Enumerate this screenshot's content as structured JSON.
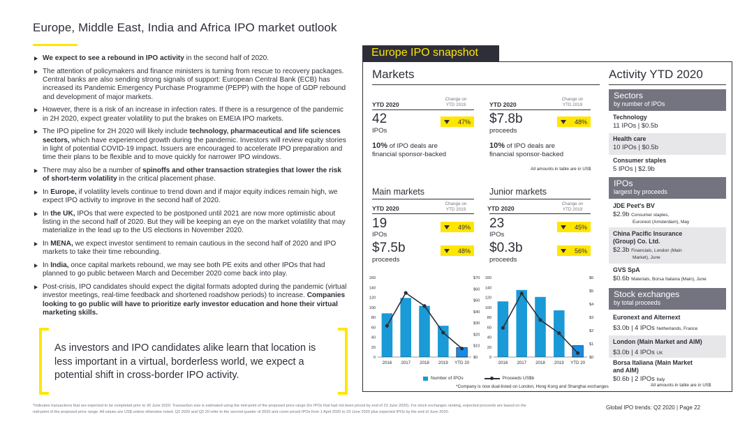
{
  "page": {
    "title": "Europe, Middle East, India and Africa IPO market outlook",
    "footer": "Global IPO trends: Q2 2020  |  Page 22",
    "footnote_line1": "*Indicates transactions that are expected to be completed prior to 30 June 2020. Transaction size is estimated using the mid-point of the proposed price range (for IPOs that had not been priced by end of 23 June 2020). For stock exchanges ranking, expected proceeds are based on the",
    "footnote_line2": "mid-point of the proposed price range. All values are US$ unless otherwise noted. Q2 2020 and Q2 20 refer to the second quarter of 2020 and cover priced IPOs from 1 April 2020 to 23 June 2020 plus expected IPOs by the end of June 2020."
  },
  "bullets": [
    {
      "bold": "We expect to see a rebound in IPO activity",
      "text": " in the second half of 2020."
    },
    {
      "text": "The attention of policymakers and finance ministers is turning from rescue to recovery packages. Central banks are also sending strong signals of support: European Central Bank (ECB) has increased its Pandemic Emergency Purchase Programme (PEPP) with the hope of GDP rebound and development of major markets."
    },
    {
      "text": "However, there is a risk of an increase in infection rates. If there is a resurgence of the pandemic in 2H 2020, expect greater volatility to put the brakes on EMEIA IPO markets."
    },
    {
      "pre": "The IPO pipeline for 2H 2020 will likely include ",
      "bold": "technology, pharmaceutical and life sciences sectors,",
      "text": " which have experienced growth during the pandemic. Investors will review equity stories in light of potential COVID-19 impact. Issuers are encouraged to accelerate IPO preparation and time their plans to be flexible and to move quickly for narrower IPO windows."
    },
    {
      "pre": "There may also be a number of ",
      "bold": "spinoffs and other transaction strategies that lower the risk of short-term volatility",
      "text": " in the critical placement phase."
    },
    {
      "pre": "In ",
      "bold": "Europe,",
      "text": " if volatility levels continue to trend down and if major equity indices remain high, we expect IPO activity to improve in the second half of 2020."
    },
    {
      "pre": "In ",
      "bold": "the UK,",
      "text": " IPOs that were expected to be postponed until 2021 are now more optimistic about listing in the second half of 2020. But they will be keeping an eye on the market volatility that may materialize in the lead up to the US elections in November 2020."
    },
    {
      "pre": "In ",
      "bold": "MENA,",
      "text": " we expect investor sentiment to remain cautious in the second half of 2020 and IPO markets to take their time rebounding."
    },
    {
      "pre": "In ",
      "bold": "India,",
      "text": " once capital markets rebound, we may see both PE exits and other IPOs that had planned to go public between March and December 2020 come back into play."
    },
    {
      "text": "Post-crisis, IPO candidates should expect the digital formats adopted during the pandemic (virtual investor meetings, real-time feedback and shortened roadshow periods) to increase. ",
      "bold2": "Companies looking to go public will have to prioritize early investor education and hone their virtual marketing skills."
    }
  ],
  "quote": "As investors and IPO candidates alike learn that location is less important in a virtual, borderless world, we expect a potential shift in cross-border IPO activity.",
  "snapshot": {
    "header": "Europe IPO snapshot",
    "markets_title": "Markets",
    "activity_title": "Activity YTD 2020",
    "ytd_label": "YTD 2020",
    "change_label_1": "Change on",
    "change_label_2": "YTD 2019",
    "deals": {
      "value": "42",
      "unit": "IPOs",
      "change": "47%"
    },
    "proceeds": {
      "value": "$7.8b",
      "unit": "proceeds",
      "change": "48%"
    },
    "sponsor_left_pct": "10%",
    "sponsor_left_rest": " of IPO deals are",
    "sponsor_left_line2": "financial sponsor-backed",
    "sponsor_right_pct": "10%",
    "sponsor_right_rest": " of IPO deals are",
    "sponsor_right_line2": "financial sponsor-backed",
    "usd_note": "All amounts in table are in US$",
    "main": {
      "title": "Main markets",
      "ipos": "19",
      "ipos_unit": "IPOs",
      "ipos_change": "49%",
      "proceeds": "$7.5b",
      "proceeds_unit": "proceeds",
      "proceeds_change": "48%"
    },
    "junior": {
      "title": "Junior markets",
      "ipos": "23",
      "ipos_unit": "IPOs",
      "ipos_change": "45%",
      "proceeds": "$0.3b",
      "proceeds_unit": "proceeds",
      "proceeds_change": "56%"
    },
    "legend_ipos": "Number of IPOs",
    "legend_proceeds": "Proceeds US$b",
    "dual_note": "*Company is now dual-listed on London, Hong Kong and Shanghai exchanges"
  },
  "activity": {
    "sectors": {
      "title": "Sectors",
      "subtitle": "by number of IPOs"
    },
    "sector_items": [
      {
        "name": "Technology",
        "value": "11 IPOs | $0.5b"
      },
      {
        "name": "Health care",
        "value": "10 IPOs | $0.5b"
      },
      {
        "name": "Consumer staples",
        "value": "5 IPOs | $2.9b"
      }
    ],
    "ipos": {
      "title": "IPOs",
      "subtitle": "largest by proceeds"
    },
    "ipo_items": [
      {
        "name": "JDE Peet's BV",
        "value": "$2.9b",
        "detail": "Consumer staples,",
        "detail2": "Euronext (Amsterdam), May"
      },
      {
        "name": "China Pacific Insurance",
        "name2": "(Group) Co. Ltd.",
        "value": "$2.3b",
        "detail": "Financials, London (Main",
        "detail2": "Market), June"
      },
      {
        "name": "GVS SpA",
        "value": "$0.6b",
        "detail": "Materials, Borsa Italiana (Main), June"
      }
    ],
    "exchanges": {
      "title": "Stock exchanges",
      "subtitle": "by total proceeds"
    },
    "exchange_items": [
      {
        "name": "Euronext and Alternext",
        "value": "$3.0b | 4 IPOs",
        "detail": "Netherlands, France"
      },
      {
        "name": "London (Main Market and AIM)",
        "value": "$3.0b | 4 IPOs",
        "detail": "UK"
      },
      {
        "name": "Borsa Italiana (Main Market",
        "name2": "and AIM)",
        "value": "$0.6b | 2 IPOs",
        "detail": "Italy"
      }
    ],
    "usd_note": "All amounts in table are in US$"
  },
  "colors": {
    "dark": "#2e2e38",
    "yellow": "#ffe600",
    "bar": "#1a9ad6",
    "bar_highlight": "#188ce5",
    "grey": "#747480"
  },
  "chart_data": [
    {
      "type": "bar",
      "title": "Main markets",
      "categories": [
        "2016",
        "2017",
        "2018",
        "2019",
        "YTD 20"
      ],
      "series": [
        {
          "name": "Number of IPOs",
          "type": "bar",
          "axis": "left",
          "values": [
            88,
            119,
            103,
            63,
            19
          ]
        },
        {
          "name": "Proceeds US$b",
          "type": "line",
          "axis": "right",
          "values": [
            27.5,
            56.5,
            45.0,
            21.5,
            7.5
          ]
        }
      ],
      "left_ticks": [
        "0",
        "20",
        "40",
        "60",
        "80",
        "100",
        "120",
        "140",
        "160"
      ],
      "right_ticks": [
        "$0",
        "$10",
        "$20",
        "$30",
        "$40",
        "$50",
        "$60",
        "$70"
      ],
      "ylim_left": [
        0,
        160
      ],
      "ylim_right": [
        0,
        70
      ]
    },
    {
      "type": "bar",
      "title": "Junior markets",
      "categories": [
        "2016",
        "2017",
        "2018",
        "2019",
        "YTD 20"
      ],
      "series": [
        {
          "name": "Number of IPOs",
          "type": "bar",
          "axis": "left",
          "values": [
            112,
            135,
            121,
            94,
            23
          ]
        },
        {
          "name": "Proceeds US$b",
          "type": "line",
          "axis": "right",
          "values": [
            2.2,
            4.8,
            2.8,
            1.8,
            0.3
          ]
        }
      ],
      "left_ticks": [
        "0",
        "20",
        "40",
        "60",
        "80",
        "100",
        "120",
        "140",
        "160"
      ],
      "right_ticks": [
        "$0",
        "$1",
        "$2",
        "$3",
        "$4",
        "$5",
        "$6"
      ],
      "ylim_left": [
        0,
        160
      ],
      "ylim_right": [
        0,
        6
      ]
    }
  ]
}
